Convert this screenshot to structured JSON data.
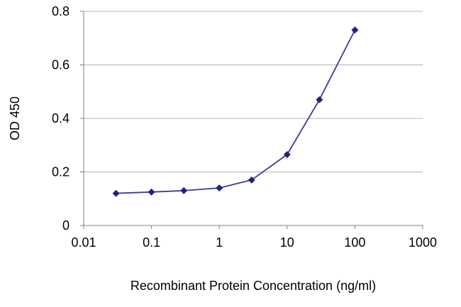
{
  "chart_data": {
    "type": "line",
    "title": "",
    "xlabel": "Recombinant Protein Concentration (ng/ml)",
    "ylabel": "OD 450",
    "x_scale": "log",
    "xlim": [
      0.01,
      1000
    ],
    "ylim": [
      0,
      0.8
    ],
    "x_ticks": [
      0.01,
      0.1,
      1,
      10,
      100,
      1000
    ],
    "x_tick_labels": [
      "0.01",
      "0.1",
      "1",
      "10",
      "100",
      "1000"
    ],
    "y_ticks": [
      0,
      0.2,
      0.4,
      0.6,
      0.8
    ],
    "y_tick_labels": [
      "0",
      "0.2",
      "0.4",
      "0.6",
      "0.8"
    ],
    "grid": "horizontal",
    "legend": "none",
    "series": [
      {
        "name": "OD 450",
        "marker": "diamond",
        "x": [
          0.03,
          0.1,
          0.3,
          1,
          3,
          10,
          30,
          100
        ],
        "y": [
          0.12,
          0.125,
          0.13,
          0.14,
          0.17,
          0.265,
          0.47,
          0.73
        ]
      }
    ]
  },
  "colors": {
    "line": "#3a3a9c",
    "marker": "#22227e",
    "grid": "#b3b3b3",
    "axis": "#808080",
    "text": "#000000",
    "background": "#ffffff"
  }
}
